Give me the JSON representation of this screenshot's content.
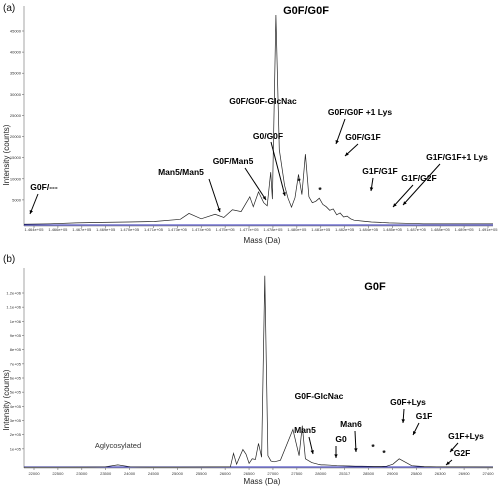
{
  "figure": {
    "panels": [
      {
        "id": "a",
        "label": "(a)",
        "ylabel": "Intensity (counts)",
        "xlabel": "Mass (Da)",
        "yticks": [
          "45000",
          "40000",
          "35000",
          "30000",
          "25000",
          "20000",
          "15000",
          "10000",
          "5000"
        ],
        "xticks": [
          "1.464e+05",
          "1.466e+05",
          "1.467e+05",
          "1.469e+05",
          "1.470e+05",
          "1.471e+05",
          "1.473e+05",
          "1.474e+05",
          "1.475e+05",
          "1.477e+05",
          "1.478e+05",
          "1.480e+05",
          "1.481e+05",
          "1.482e+05",
          "1.484e+05",
          "1.485e+05",
          "1.487e+05",
          "1.488e+05",
          "1.489e+05",
          "1.491e+05"
        ],
        "annotations": [
          {
            "text": "G0F/G0F",
            "style": "big"
          },
          {
            "text": "G0F/G0F-GlcNac",
            "style": "bold"
          },
          {
            "text": "G0F/G0F +1 Lys",
            "style": "bold"
          },
          {
            "text": "G0/G0F",
            "style": "bold"
          },
          {
            "text": "G0F/G1F",
            "style": "bold"
          },
          {
            "text": "G0F/Man5",
            "style": "bold"
          },
          {
            "text": "Man5/Man5",
            "style": "bold"
          },
          {
            "text": "G1F/G1F",
            "style": "bold"
          },
          {
            "text": "G1F/G1F+1 Lys",
            "style": "bold"
          },
          {
            "text": "G1F/G2F",
            "style": "bold"
          },
          {
            "text": "G0F/---",
            "style": "bold"
          },
          {
            "text": "*",
            "style": "bold"
          },
          {
            "text": "*",
            "style": "bold"
          }
        ]
      },
      {
        "id": "b",
        "label": "(b)",
        "ylabel": "Intensity (counts)",
        "xlabel": "Mass (Da)",
        "yticks": [
          "1.2e+06",
          "1.1e+06",
          "1e+06",
          "9e+05",
          "8e+05",
          "7e+05",
          "6e+05",
          "5e+05",
          "4e+05",
          "3e+05",
          "2e+05",
          "1e+05"
        ],
        "xticks": [
          "22000",
          "22500",
          "23000",
          "23500",
          "24000",
          "24500",
          "25000",
          "25500",
          "26000",
          "26500",
          "27000",
          "27500",
          "28000",
          "25317",
          "28500",
          "29000",
          "25800",
          "26300",
          "26900",
          "27400"
        ],
        "annotations": [
          {
            "text": "G0F",
            "style": "big"
          },
          {
            "text": "G0F-GlcNac",
            "style": "bold"
          },
          {
            "text": "Man6",
            "style": "bold"
          },
          {
            "text": "G0F+Lys",
            "style": "bold"
          },
          {
            "text": "G1F",
            "style": "bold"
          },
          {
            "text": "Man5",
            "style": "bold"
          },
          {
            "text": "G0",
            "style": "bold"
          },
          {
            "text": "G1F+Lys",
            "style": "bold"
          },
          {
            "text": "G2F",
            "style": "bold"
          },
          {
            "text": "Aglycosylated",
            "style": "plain"
          },
          {
            "text": "*",
            "style": "bold"
          },
          {
            "text": "*",
            "style": "bold"
          }
        ]
      }
    ]
  },
  "chart_data": [
    {
      "type": "line",
      "panel": "(a)",
      "ylabel": "Intensity (counts)",
      "xlabel": "Mass (Da)",
      "ylim": [
        0,
        49000
      ],
      "xlim": [
        146400,
        149100
      ],
      "series": [
        {
          "x": [
            146400,
            146550,
            146700,
            146850,
            147000,
            147150,
            147300,
            147350,
            147420,
            147500,
            147550,
            147600,
            147650,
            147700,
            147720,
            147750,
            147780,
            147800,
            147820,
            147830,
            147850,
            147870,
            147900,
            147920,
            147940,
            147960,
            147980,
            148000,
            148020,
            148040,
            148060,
            148080,
            148100,
            148120,
            148140,
            148160,
            148180,
            148200,
            148220,
            148240,
            148260,
            148280,
            148300,
            148350,
            148400,
            148450,
            148500,
            148600,
            148700,
            148800,
            148900,
            149000,
            149100
          ],
          "values": [
            400,
            500,
            700,
            800,
            900,
            1000,
            1500,
            2800,
            1600,
            2600,
            1900,
            3600,
            3200,
            6500,
            4300,
            7600,
            5200,
            4500,
            12000,
            6000,
            47000,
            17000,
            9000,
            6200,
            4200,
            6300,
            11500,
            7000,
            16000,
            6500,
            5200,
            5500,
            6200,
            4800,
            4300,
            3500,
            3800,
            2500,
            2900,
            2000,
            2200,
            1600,
            1300,
            1100,
            900,
            800,
            700,
            600,
            500,
            500,
            500,
            500,
            500
          ]
        }
      ]
    },
    {
      "type": "line",
      "panel": "(b)",
      "ylabel": "Intensity (counts)",
      "xlabel": "Mass (Da)",
      "ylim": [
        0,
        1300000
      ],
      "xlim": [
        22000,
        29500
      ],
      "series": [
        {
          "x": [
            22000,
            22500,
            23000,
            23300,
            23500,
            23700,
            24000,
            24500,
            25000,
            25300,
            25350,
            25400,
            25500,
            25550,
            25600,
            25650,
            25700,
            25750,
            25800,
            25850,
            25900,
            25950,
            26000,
            26100,
            26300,
            26400,
            26450,
            26500,
            26600,
            26700,
            26750,
            26800,
            26900,
            27000,
            27100,
            27200,
            27300,
            27400,
            27500,
            27600,
            27700,
            27800,
            27900,
            28000,
            28200,
            28400,
            28600,
            28800,
            29000,
            29200,
            29500
          ],
          "values": [
            5000,
            5000,
            6000,
            8000,
            20000,
            8000,
            6000,
            6000,
            7000,
            8000,
            95000,
            25000,
            120000,
            90000,
            30000,
            60000,
            55000,
            160000,
            70000,
            1250000,
            80000,
            45000,
            40000,
            50000,
            250000,
            80000,
            275000,
            60000,
            35000,
            25000,
            20000,
            20000,
            18000,
            15000,
            14000,
            13000,
            12000,
            12000,
            11000,
            10000,
            10000,
            12000,
            25000,
            60000,
            15000,
            9000,
            8000,
            7000,
            7000,
            7000,
            6000
          ]
        }
      ]
    }
  ]
}
